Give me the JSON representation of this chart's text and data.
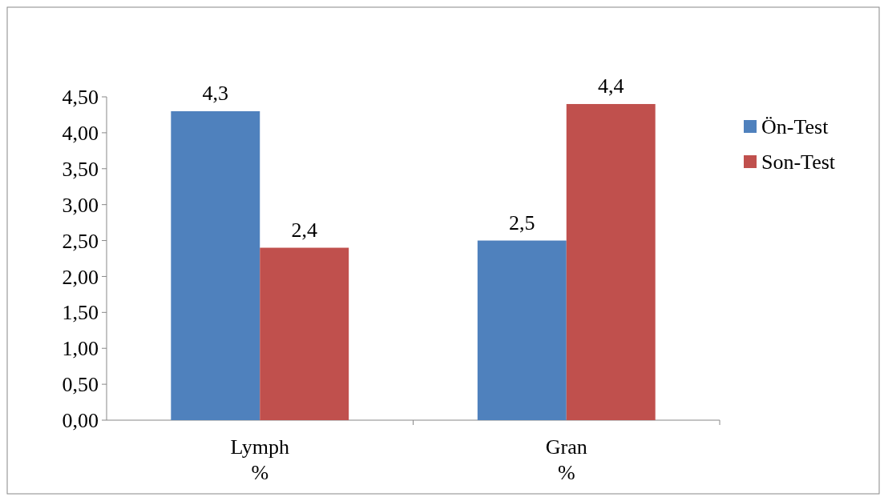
{
  "chart_data": {
    "type": "bar",
    "categories": [
      "Lymph\n%",
      "Gran\n%"
    ],
    "series": [
      {
        "name": "Ön-Test",
        "color": "#4f81bd",
        "values": [
          4.3,
          2.5
        ],
        "value_labels": [
          "4,3",
          "2,5"
        ]
      },
      {
        "name": "Son-Test",
        "color": "#c0504d",
        "values": [
          2.4,
          4.4
        ],
        "value_labels": [
          "2,4",
          "4,4"
        ]
      }
    ],
    "ylim": [
      0,
      4.5
    ],
    "yticks": [
      {
        "value": 0,
        "label": "0,00"
      },
      {
        "value": 0.5,
        "label": "0,50"
      },
      {
        "value": 1,
        "label": "1,00"
      },
      {
        "value": 1.5,
        "label": "1,50"
      },
      {
        "value": 2,
        "label": "2,00"
      },
      {
        "value": 2.5,
        "label": "2,50"
      },
      {
        "value": 3,
        "label": "3,00"
      },
      {
        "value": 3.5,
        "label": "3,50"
      },
      {
        "value": 4,
        "label": "4,00"
      },
      {
        "value": 4.5,
        "label": "4,50"
      }
    ],
    "legend": "right",
    "grid": false
  }
}
